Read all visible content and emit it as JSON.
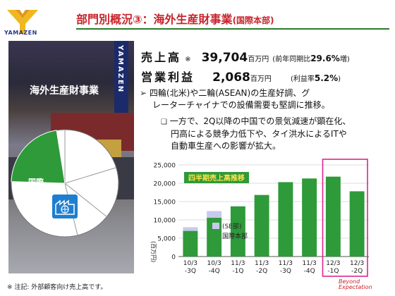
{
  "header": {
    "logo_text": "YAMAZEN",
    "title": "部門別概況③：海外生産財事業",
    "title_suffix": "(国際本部)"
  },
  "photo": {
    "caption": "海外生産財事業",
    "tower_text": "YAMAZEN"
  },
  "pie": {
    "label_name": "国際",
    "label_value": "22.0",
    "share_percent": 22.0,
    "icon": "factory-globe-icon"
  },
  "kpis": {
    "sales_label": "売上高",
    "sales_mark": "※",
    "sales_value": "39,704",
    "sales_unit": "百万円",
    "sales_note_prefix": "(前年同期比",
    "sales_note_value": "29.6%",
    "sales_note_suffix": "増)",
    "op_label": "営業利益",
    "op_value": "2,068",
    "op_unit": "百万円",
    "op_note_prefix": "(利益率",
    "op_note_value": "5.2%",
    "op_note_suffix": ")"
  },
  "bullets": {
    "main_marker": "➢",
    "main_line1": "四輪(北米)や二輪(ASEAN)の生産好調、グ",
    "main_line2": "レーターチャイナでの設備需要も堅調に推移。",
    "sub_marker": "❑",
    "sub_line1": "一方で、2Q以降の中国での景気減速が顕在化、",
    "sub_line2": "円高による競争力低下や、タイ洪水によるITや",
    "sub_line3": "自動車生産への影響が拡大。"
  },
  "chart_data": {
    "type": "bar",
    "stacked": true,
    "title": "四半期売上高推移",
    "ylabel": "(百万円)",
    "categories": [
      "10/3 -3Q",
      "10/3 -4Q",
      "11/3 -1Q",
      "11/3 -2Q",
      "11/3 -3Q",
      "11/3 -4Q",
      "12/3 -1Q",
      "12/3 -2Q"
    ],
    "category_lines": [
      [
        "10/3",
        "-3Q"
      ],
      [
        "10/3",
        "-4Q"
      ],
      [
        "11/3",
        "-1Q"
      ],
      [
        "11/3",
        "-2Q"
      ],
      [
        "11/3",
        "-3Q"
      ],
      [
        "11/3",
        "-4Q"
      ],
      [
        "12/3",
        "-1Q"
      ],
      [
        "12/3",
        "-2Q"
      ]
    ],
    "series": [
      {
        "name": "国際本部",
        "values": [
          7000,
          10600,
          13700,
          16800,
          20300,
          21300,
          21800,
          17800
        ]
      },
      {
        "name": "(SE部)",
        "values": [
          1000,
          1800,
          0,
          0,
          0,
          0,
          0,
          0
        ]
      }
    ],
    "yticks": [
      "25,000",
      "20,000",
      "15,000",
      "10,000",
      "5,000",
      "0"
    ],
    "ylim": [
      0,
      25000
    ],
    "grid": true,
    "legend": "inside-left",
    "highlight": [
      "12/3 -1Q",
      "12/3 -2Q"
    ],
    "colors": {
      "main": "#2e9a3a",
      "se": "#c7c9ee",
      "highlight": "#e0258a"
    }
  },
  "footer": {
    "footnote": "※ 注記: 外部顧客向け売上高です。",
    "beyond_line1": "Beyond",
    "beyond_line2": "Expectation"
  }
}
